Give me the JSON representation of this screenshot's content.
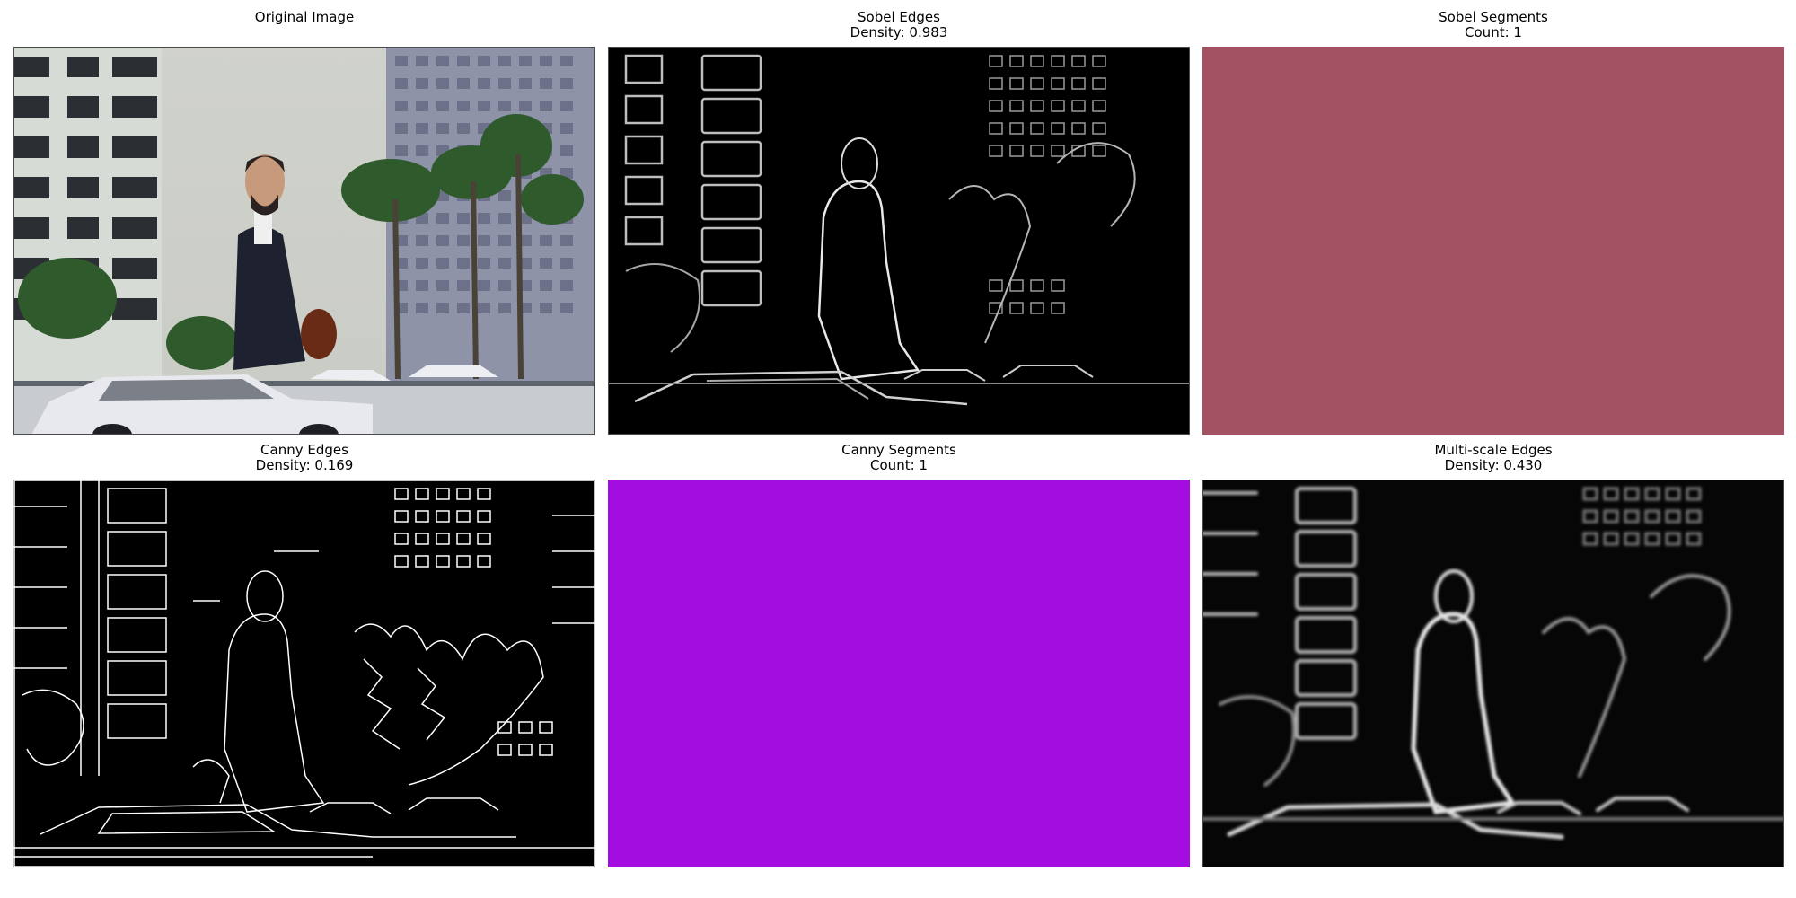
{
  "panels": [
    {
      "id": "original",
      "title": [
        "Original Image"
      ],
      "fill": "#9aa4ae"
    },
    {
      "id": "sobel-edges",
      "title": [
        "Sobel Edges",
        "Density: 0.983"
      ],
      "fill": "#000000"
    },
    {
      "id": "sobel-segments",
      "title": [
        "Sobel Segments",
        "Count: 1"
      ],
      "fill": "#a35263"
    },
    {
      "id": "canny-edges",
      "title": [
        "Canny Edges",
        "Density: 0.169"
      ],
      "fill": "#000000"
    },
    {
      "id": "canny-segments",
      "title": [
        "Canny Segments",
        "Count: 1"
      ],
      "fill": "#a40ddf"
    },
    {
      "id": "multiscale-edges",
      "title": [
        "Multi-scale Edges",
        "Density: 0.430"
      ],
      "fill": "#060606"
    }
  ]
}
